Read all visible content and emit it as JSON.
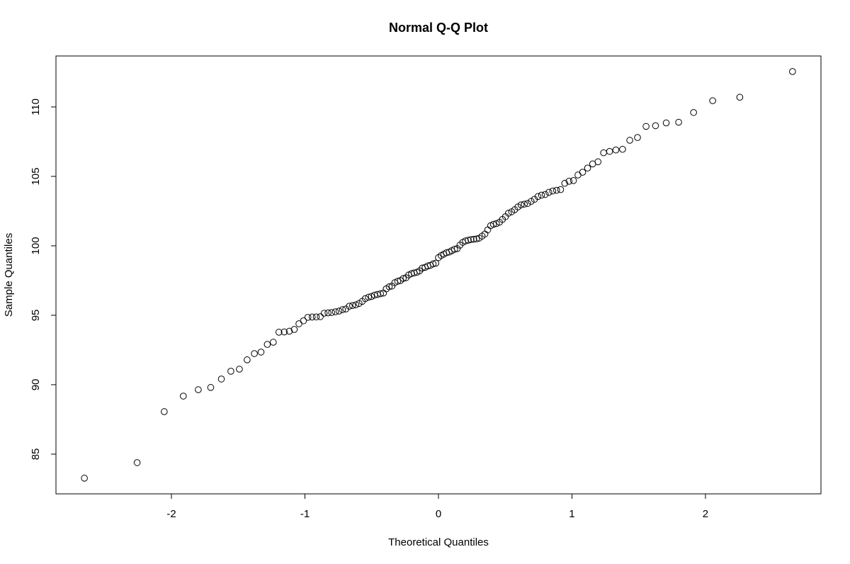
{
  "chart_data": {
    "type": "scatter",
    "title": "Normal Q-Q Plot",
    "x_label": "Theoretical Quantiles",
    "y_label": "Sample Quantiles",
    "x": [
      -2.652,
      -2.257,
      -2.054,
      -1.911,
      -1.799,
      -1.706,
      -1.626,
      -1.555,
      -1.491,
      -1.433,
      -1.379,
      -1.329,
      -1.282,
      -1.237,
      -1.195,
      -1.155,
      -1.117,
      -1.08,
      -1.045,
      -1.011,
      -0.978,
      -0.946,
      -0.915,
      -0.885,
      -0.856,
      -0.827,
      -0.8,
      -0.772,
      -0.745,
      -0.719,
      -0.694,
      -0.668,
      -0.643,
      -0.619,
      -0.595,
      -0.571,
      -0.548,
      -0.524,
      -0.502,
      -0.479,
      -0.457,
      -0.434,
      -0.412,
      -0.391,
      -0.369,
      -0.348,
      -0.327,
      -0.305,
      -0.285,
      -0.264,
      -0.243,
      -0.223,
      -0.202,
      -0.182,
      -0.161,
      -0.141,
      -0.121,
      -0.1,
      -0.08,
      -0.06,
      -0.04,
      -0.02,
      0,
      0.02,
      0.04,
      0.06,
      0.08,
      0.1,
      0.121,
      0.141,
      0.161,
      0.182,
      0.202,
      0.223,
      0.243,
      0.264,
      0.285,
      0.305,
      0.327,
      0.348,
      0.369,
      0.391,
      0.412,
      0.434,
      0.457,
      0.479,
      0.502,
      0.524,
      0.548,
      0.571,
      0.595,
      0.619,
      0.643,
      0.668,
      0.694,
      0.719,
      0.745,
      0.772,
      0.8,
      0.827,
      0.856,
      0.885,
      0.915,
      0.946,
      0.978,
      1.011,
      1.045,
      1.08,
      1.117,
      1.155,
      1.195,
      1.237,
      1.282,
      1.329,
      1.379,
      1.433,
      1.491,
      1.555,
      1.626,
      1.706,
      1.799,
      1.911,
      2.054,
      2.257,
      2.652
    ],
    "values": [
      83.27,
      84.39,
      88.06,
      89.18,
      89.64,
      89.8,
      90.41,
      90.97,
      91.12,
      91.79,
      92.24,
      92.35,
      92.9,
      93.06,
      93.78,
      93.8,
      93.85,
      93.98,
      94.39,
      94.6,
      94.85,
      94.87,
      94.88,
      94.9,
      95.15,
      95.17,
      95.2,
      95.25,
      95.3,
      95.4,
      95.45,
      95.65,
      95.7,
      95.75,
      95.85,
      96.0,
      96.2,
      96.3,
      96.35,
      96.45,
      96.5,
      96.55,
      96.6,
      96.9,
      97.05,
      97.1,
      97.35,
      97.45,
      97.5,
      97.65,
      97.7,
      97.9,
      98.0,
      98.05,
      98.1,
      98.2,
      98.4,
      98.45,
      98.55,
      98.6,
      98.7,
      98.75,
      99.15,
      99.3,
      99.4,
      99.5,
      99.55,
      99.65,
      99.75,
      99.8,
      100.05,
      100.25,
      100.35,
      100.4,
      100.45,
      100.47,
      100.5,
      100.55,
      100.7,
      100.85,
      101.15,
      101.45,
      101.55,
      101.6,
      101.7,
      101.9,
      102.1,
      102.35,
      102.45,
      102.6,
      102.8,
      102.95,
      103.0,
      103.05,
      103.2,
      103.35,
      103.55,
      103.65,
      103.7,
      103.85,
      103.95,
      104.0,
      104.05,
      104.5,
      104.65,
      104.7,
      105.1,
      105.3,
      105.6,
      105.9,
      106.05,
      106.7,
      106.8,
      106.9,
      106.95,
      107.6,
      107.8,
      108.6,
      108.65,
      108.85,
      108.9,
      109.6,
      110.45,
      110.7,
      112.55
    ],
    "color": "#000000",
    "xlim": [
      -2.865,
      2.865
    ],
    "xticks": [
      -2,
      -1,
      0,
      1,
      2
    ],
    "ylim": [
      82.14,
      113.67
    ],
    "yticks": [
      85,
      90,
      95,
      100,
      105,
      110
    ]
  }
}
